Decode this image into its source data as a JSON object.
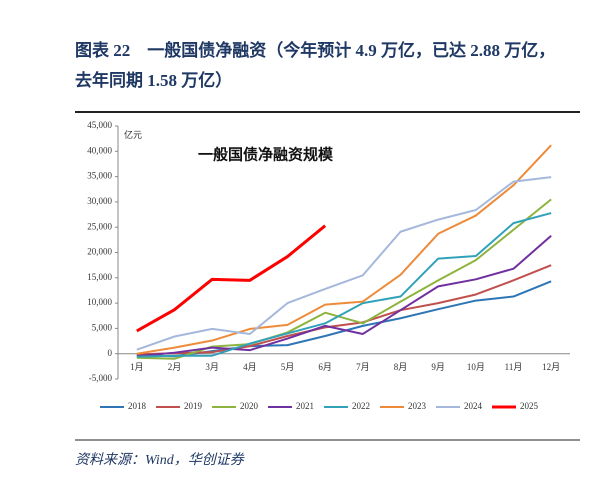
{
  "heading": "图表 22　一般国债净融资（今年预计 4.9 万亿，已达 2.88 万亿，去年同期 1.58 万亿）",
  "source": "资料来源：Wind，华创证券",
  "chart_data": {
    "type": "line",
    "title": "一般国债净融资规模",
    "y_label": "亿元",
    "categories": [
      "1月",
      "2月",
      "3月",
      "4月",
      "5月",
      "6月",
      "7月",
      "8月",
      "9月",
      "10月",
      "11月",
      "12月"
    ],
    "ylim": [
      -5000,
      45000
    ],
    "yticks": [
      {
        "value": -5000,
        "label": "-5,000"
      },
      0,
      {
        "value": 5000,
        "label": "5,000"
      },
      {
        "value": 10000,
        "label": "10,000"
      },
      {
        "value": 15000,
        "label": "15,000"
      },
      {
        "value": 20000,
        "label": "20,000"
      },
      {
        "value": 25000,
        "label": "25,000"
      },
      {
        "value": 30000,
        "label": "30,000"
      },
      {
        "value": 35000,
        "label": "35,000"
      },
      {
        "value": 40000,
        "label": "40,000"
      },
      {
        "value": 45000,
        "label": "45,000"
      }
    ],
    "series": [
      {
        "name": "2018",
        "color": "#2e75b6",
        "values": [
          -300,
          -500,
          500,
          1500,
          1700,
          3500,
          5500,
          7000,
          8800,
          10500,
          11300,
          14300
        ]
      },
      {
        "name": "2019",
        "color": "#c0504d",
        "values": [
          -100,
          100,
          300,
          1500,
          3500,
          5200,
          6200,
          8600,
          10000,
          11700,
          14500,
          17500
        ]
      },
      {
        "name": "2020",
        "color": "#8db43e",
        "values": [
          -800,
          -1000,
          1400,
          1900,
          4200,
          8100,
          6000,
          10300,
          14500,
          18500,
          24500,
          30500
        ]
      },
      {
        "name": "2021",
        "color": "#7030a0",
        "values": [
          -500,
          200,
          1200,
          700,
          3000,
          5500,
          3900,
          8600,
          13300,
          14700,
          16800,
          23300
        ]
      },
      {
        "name": "2022",
        "color": "#31a2b9",
        "values": [
          -600,
          -400,
          -400,
          2000,
          4000,
          6000,
          10000,
          11300,
          18800,
          19300,
          25800,
          27800
        ]
      },
      {
        "name": "2023",
        "color": "#ed8b3a",
        "values": [
          0,
          1200,
          2600,
          4900,
          5700,
          9700,
          10300,
          15600,
          23700,
          27300,
          33300,
          41200
        ]
      },
      {
        "name": "2024",
        "color": "#a5b8dc",
        "values": [
          800,
          3400,
          4900,
          3900,
          10000,
          12800,
          15500,
          24100,
          26500,
          28400,
          34000,
          34900
        ]
      },
      {
        "name": "2025",
        "color": "#ff0000",
        "values": [
          4500,
          8700,
          14700,
          14500,
          19200,
          25300,
          null,
          null,
          null,
          null,
          null,
          null
        ]
      }
    ]
  }
}
